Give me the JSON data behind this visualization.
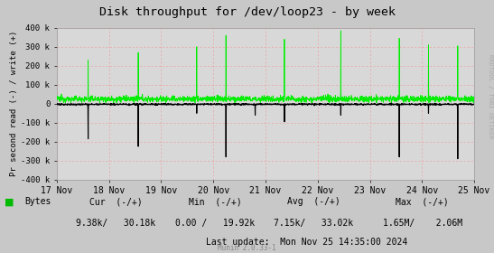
{
  "title": "Disk throughput for /dev/loop23 - by week",
  "ylabel": "Pr second read (-) / write (+)",
  "xlabel_ticks": [
    "17 Nov",
    "18 Nov",
    "19 Nov",
    "20 Nov",
    "21 Nov",
    "22 Nov",
    "23 Nov",
    "24 Nov",
    "25 Nov"
  ],
  "ylim": [
    -400000,
    400000
  ],
  "yticks": [
    -400000,
    -300000,
    -200000,
    -100000,
    0,
    100000,
    200000,
    300000,
    400000
  ],
  "ytick_labels": [
    "-400 k",
    "-300 k",
    "-200 k",
    "-100 k",
    "0",
    "100 k",
    "200 k",
    "300 k",
    "400 k"
  ],
  "bg_color": "#c8c8c8",
  "plot_bg_color": "#d8d8d8",
  "grid_color_h": "#f0a0a0",
  "grid_color_v": "#f0a0a0",
  "line_color_write": "#00ee00",
  "line_color_read": "#000000",
  "legend_label": "Bytes",
  "legend_color": "#00bb00",
  "footer_cur_label": "Cur  (-/+)",
  "footer_cur_val": "9.38k/   30.18k",
  "footer_min_label": "Min  (-/+)",
  "footer_min_val": "0.00 /   19.92k",
  "footer_avg_label": "Avg  (-/+)",
  "footer_avg_val": "7.15k/   33.02k",
  "footer_max_label": "Max  (-/+)",
  "footer_max_val": "1.65M/    2.06M",
  "footer_last": "Last update:  Mon Nov 25 14:35:00 2024",
  "munin_label": "Munin 2.0.33-1",
  "rrdtool_label": "RRDTOOL / TOBI OETIKER",
  "num_points": 2000,
  "spike_positions_write": [
    0.075,
    0.195,
    0.265,
    0.335,
    0.405,
    0.475,
    0.545,
    0.615,
    0.68,
    0.75,
    0.82,
    0.89,
    0.96
  ],
  "spike_heights_write": [
    230000,
    270000,
    20000,
    300000,
    360000,
    20000,
    340000,
    20000,
    385000,
    20000,
    345000,
    310000,
    305000
  ],
  "spike_positions_read": [
    0.075,
    0.195,
    0.335,
    0.405,
    0.475,
    0.545,
    0.68,
    0.82,
    0.89,
    0.96
  ],
  "spike_depths_read": [
    -185000,
    -225000,
    -50000,
    -280000,
    -60000,
    -95000,
    -60000,
    -280000,
    -50000,
    -290000
  ],
  "baseline_write_mean": 25000,
  "baseline_write_std": 8000,
  "baseline_read_mean": -3000,
  "baseline_read_std": 2000
}
